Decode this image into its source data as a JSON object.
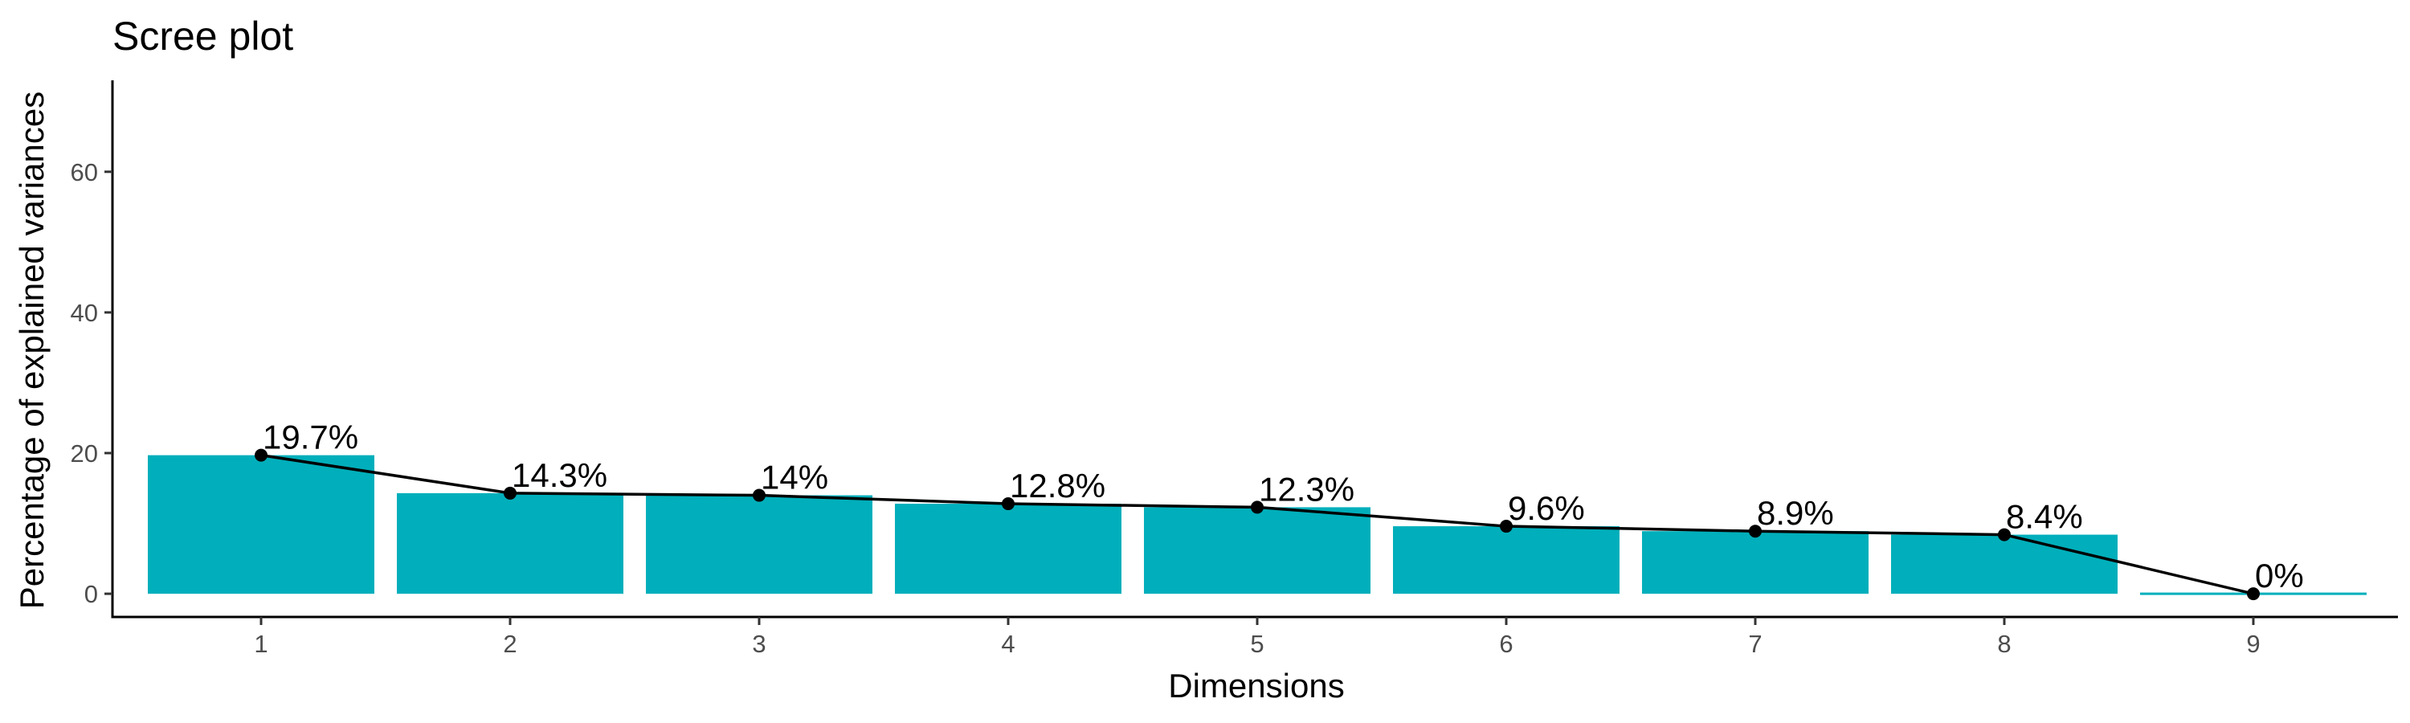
{
  "chart_data": {
    "type": "bar",
    "title": "Scree plot",
    "xlabel": "Dimensions",
    "ylabel": "Percentage of explained variances",
    "categories": [
      "1",
      "2",
      "3",
      "4",
      "5",
      "6",
      "7",
      "8",
      "9"
    ],
    "values": [
      19.7,
      14.3,
      14.0,
      12.8,
      12.3,
      9.6,
      8.9,
      8.4,
      0
    ],
    "data_labels": [
      "19.7%",
      "14.3%",
      "14%",
      "12.8%",
      "12.3%",
      "9.6%",
      "8.9%",
      "8.4%",
      "0%"
    ],
    "ylim": [
      -3.3,
      73
    ],
    "yticks": [
      0,
      20,
      40,
      60
    ],
    "bar_color": "#00AFBB",
    "line_color": "#000000",
    "grid": false,
    "legend": "none",
    "overlay": "line-with-points"
  }
}
